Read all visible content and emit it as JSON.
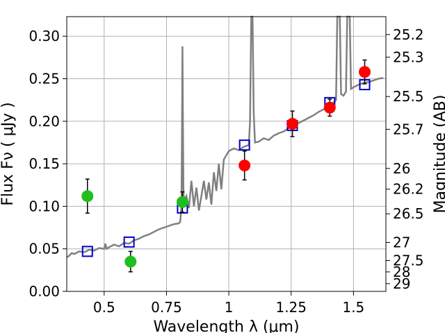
{
  "chart_data": {
    "type": "scatter",
    "xlabel": "Wavelength  λ (μm)",
    "ylabel": "Flux  Fν  ( μJy )",
    "y2label": "Magnitude (AB)",
    "xlim": [
      0.35,
      1.63
    ],
    "ylim": [
      0.0,
      0.323
    ],
    "grid": true,
    "x_ticks": [
      0.5,
      0.75,
      1.0,
      1.25,
      1.5
    ],
    "x_tick_labels": [
      "0.5",
      "0.75",
      "1",
      "1.25",
      "1.5"
    ],
    "y_ticks": [
      0.0,
      0.05,
      0.1,
      0.15,
      0.2,
      0.25,
      0.3
    ],
    "y_tick_labels": [
      "0.00",
      "0.05",
      "0.10",
      "0.15",
      "0.20",
      "0.25",
      "0.30"
    ],
    "y2_ticks": [
      "25.2",
      "25.3",
      "25.5",
      "25.7",
      "26",
      "26.2",
      "26.5",
      "27",
      "27.5",
      "28",
      "29"
    ],
    "spectrum_color": "#808080",
    "spectrum": [
      [
        0.35,
        0.04
      ],
      [
        0.36,
        0.042
      ],
      [
        0.37,
        0.045
      ],
      [
        0.38,
        0.044
      ],
      [
        0.4,
        0.047
      ],
      [
        0.42,
        0.046
      ],
      [
        0.44,
        0.049
      ],
      [
        0.46,
        0.048
      ],
      [
        0.48,
        0.051
      ],
      [
        0.5,
        0.05
      ],
      [
        0.505,
        0.056
      ],
      [
        0.51,
        0.05
      ],
      [
        0.52,
        0.052
      ],
      [
        0.54,
        0.055
      ],
      [
        0.56,
        0.053
      ],
      [
        0.58,
        0.057
      ],
      [
        0.6,
        0.056
      ],
      [
        0.62,
        0.06
      ],
      [
        0.64,
        0.062
      ],
      [
        0.66,
        0.065
      ],
      [
        0.68,
        0.067
      ],
      [
        0.7,
        0.07
      ],
      [
        0.72,
        0.073
      ],
      [
        0.74,
        0.075
      ],
      [
        0.76,
        0.077
      ],
      [
        0.78,
        0.079
      ],
      [
        0.8,
        0.08
      ],
      [
        0.805,
        0.082
      ],
      [
        0.81,
        0.1
      ],
      [
        0.812,
        0.18
      ],
      [
        0.814,
        0.288
      ],
      [
        0.816,
        0.2
      ],
      [
        0.818,
        0.12
      ],
      [
        0.82,
        0.105
      ],
      [
        0.83,
        0.112
      ],
      [
        0.84,
        0.098
      ],
      [
        0.85,
        0.13
      ],
      [
        0.86,
        0.1
      ],
      [
        0.87,
        0.122
      ],
      [
        0.88,
        0.095
      ],
      [
        0.89,
        0.112
      ],
      [
        0.9,
        0.13
      ],
      [
        0.91,
        0.108
      ],
      [
        0.92,
        0.128
      ],
      [
        0.93,
        0.102
      ],
      [
        0.94,
        0.14
      ],
      [
        0.95,
        0.118
      ],
      [
        0.96,
        0.15
      ],
      [
        0.97,
        0.12
      ],
      [
        0.98,
        0.155
      ],
      [
        0.99,
        0.16
      ],
      [
        1.0,
        0.165
      ],
      [
        1.02,
        0.168
      ],
      [
        1.04,
        0.166
      ],
      [
        1.06,
        0.17
      ],
      [
        1.08,
        0.172
      ],
      [
        1.085,
        0.2
      ],
      [
        1.09,
        0.323
      ],
      [
        1.095,
        0.323
      ],
      [
        1.1,
        0.21
      ],
      [
        1.105,
        0.175
      ],
      [
        1.12,
        0.176
      ],
      [
        1.14,
        0.18
      ],
      [
        1.16,
        0.178
      ],
      [
        1.18,
        0.183
      ],
      [
        1.2,
        0.186
      ],
      [
        1.22,
        0.188
      ],
      [
        1.24,
        0.192
      ],
      [
        1.26,
        0.196
      ],
      [
        1.28,
        0.198
      ],
      [
        1.3,
        0.201
      ],
      [
        1.32,
        0.204
      ],
      [
        1.34,
        0.207
      ],
      [
        1.36,
        0.211
      ],
      [
        1.38,
        0.214
      ],
      [
        1.4,
        0.218
      ],
      [
        1.42,
        0.222
      ],
      [
        1.43,
        0.225
      ],
      [
        1.435,
        0.323
      ],
      [
        1.445,
        0.323
      ],
      [
        1.45,
        0.232
      ],
      [
        1.46,
        0.23
      ],
      [
        1.47,
        0.235
      ],
      [
        1.475,
        0.323
      ],
      [
        1.485,
        0.323
      ],
      [
        1.49,
        0.238
      ],
      [
        1.5,
        0.24
      ],
      [
        1.52,
        0.243
      ],
      [
        1.54,
        0.245
      ],
      [
        1.56,
        0.246
      ],
      [
        1.58,
        0.248
      ],
      [
        1.6,
        0.25
      ],
      [
        1.62,
        0.251
      ]
    ],
    "model_points": {
      "color": "#0000cc",
      "points": [
        [
          0.433,
          0.047
        ],
        [
          0.6,
          0.058
        ],
        [
          0.814,
          0.098
        ],
        [
          1.063,
          0.172
        ],
        [
          1.255,
          0.195
        ],
        [
          1.405,
          0.222
        ],
        [
          1.545,
          0.243
        ]
      ]
    },
    "observed_green": {
      "color": "#1fbf1f",
      "points": [
        {
          "x": 0.433,
          "y": 0.112,
          "err": 0.02
        },
        {
          "x": 0.606,
          "y": 0.035,
          "err": 0.012
        },
        {
          "x": 0.814,
          "y": 0.105,
          "err": 0.012
        }
      ]
    },
    "observed_red": {
      "color": "#ff0000",
      "points": [
        {
          "x": 1.063,
          "y": 0.148,
          "err": 0.017
        },
        {
          "x": 1.255,
          "y": 0.197,
          "err": 0.015
        },
        {
          "x": 1.405,
          "y": 0.216,
          "err": 0.01
        },
        {
          "x": 1.545,
          "y": 0.258,
          "err": 0.014
        }
      ]
    }
  }
}
